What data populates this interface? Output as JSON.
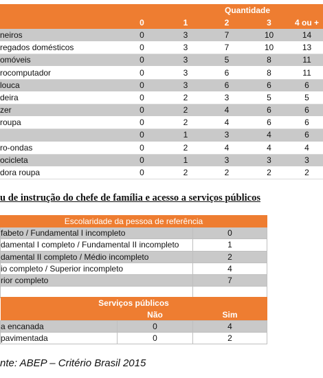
{
  "goods_table": {
    "header_label": "Quantidade",
    "columns": [
      "0",
      "1",
      "2",
      "3",
      "4 ou +"
    ],
    "rows": [
      {
        "label": "neiros",
        "values": [
          "0",
          "3",
          "7",
          "10",
          "14"
        ]
      },
      {
        "label": "regados domésticos",
        "values": [
          "0",
          "3",
          "7",
          "10",
          "13"
        ]
      },
      {
        "label": "omóveis",
        "values": [
          "0",
          "3",
          "5",
          "8",
          "11"
        ]
      },
      {
        "label": "rocomputador",
        "values": [
          "0",
          "3",
          "6",
          "8",
          "11"
        ]
      },
      {
        "label": " louca",
        "values": [
          "0",
          "3",
          "6",
          "6",
          "6"
        ]
      },
      {
        "label": "deira",
        "values": [
          "0",
          "2",
          "3",
          "5",
          "5"
        ]
      },
      {
        "label": "zer",
        "values": [
          "0",
          "2",
          "4",
          "6",
          "6"
        ]
      },
      {
        "label": " roupa",
        "values": [
          "0",
          "2",
          "4",
          "6",
          "6"
        ]
      },
      {
        "label": "",
        "values": [
          "0",
          "1",
          "3",
          "4",
          "6"
        ]
      },
      {
        "label": "ro-ondas",
        "values": [
          "0",
          "2",
          "4",
          "4",
          "4"
        ]
      },
      {
        "label": "ocicleta",
        "values": [
          "0",
          "1",
          "3",
          "3",
          "3"
        ]
      },
      {
        "label": "dora roupa",
        "values": [
          "0",
          "2",
          "2",
          "2",
          "2"
        ]
      }
    ]
  },
  "section_heading": "u de instrução do chefe de família e acesso a serviços públicos",
  "education_table": {
    "header": "Escolaridade da pessoa de referência",
    "rows": [
      {
        "label": "fabeto / Fundamental I incompleto",
        "value": "0"
      },
      {
        "label": "damental I completo / Fundamental II incompleto",
        "value": "1"
      },
      {
        "label": "damental II completo / Médio incompleto",
        "value": "2"
      },
      {
        "label": "io completo / Superior incompleto",
        "value": "4"
      },
      {
        "label": "rior completo",
        "value": "7"
      }
    ]
  },
  "services_table": {
    "header": "Serviços públicos",
    "col_no": "Não",
    "col_yes": "Sim",
    "rows": [
      {
        "label": "a encanada",
        "no": "0",
        "yes": "4"
      },
      {
        "label": "pavimentada",
        "no": "0",
        "yes": "2"
      }
    ]
  },
  "source": "nte: ABEP – Critério Brasil 2015"
}
